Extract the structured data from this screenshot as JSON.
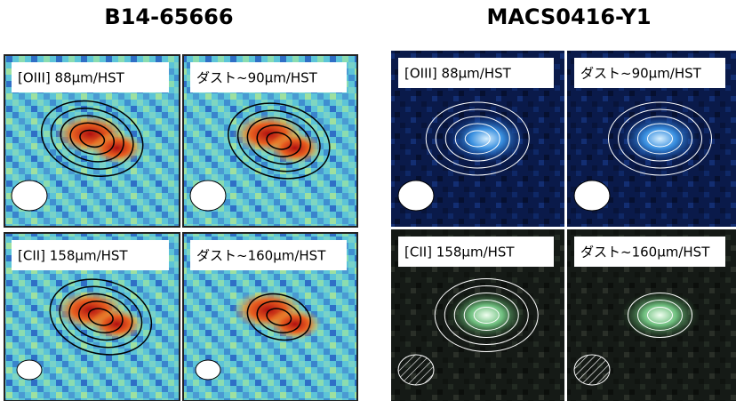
{
  "groups": [
    {
      "title": "B14-65666",
      "panels": [
        {
          "label": "[OIII] 88μm/HST"
        },
        {
          "label": "ダスト~90μm/HST"
        },
        {
          "label": "[CII] 158μm/HST"
        },
        {
          "label": "ダスト~160μm/HST"
        }
      ]
    },
    {
      "title": "MACS0416-Y1",
      "panels": [
        {
          "label": "[OIII] 88μm/HST"
        },
        {
          "label": "ダスト~90μm/HST"
        },
        {
          "label": "[CII] 158μm/HST"
        },
        {
          "label": "ダスト~160μm/HST"
        }
      ]
    }
  ]
}
